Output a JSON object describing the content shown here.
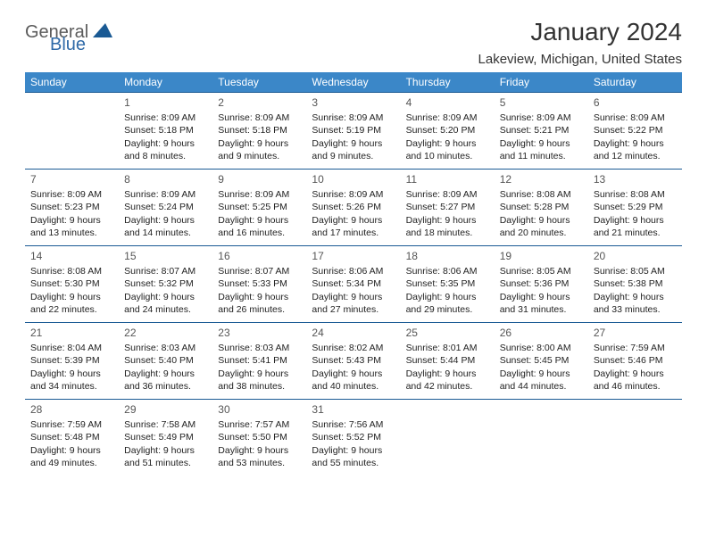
{
  "brand": {
    "name_gray": "General",
    "name_blue": "Blue",
    "logo_fill": "#1a5a94"
  },
  "title": "January 2024",
  "location": "Lakeview, Michigan, United States",
  "header_bg": "#3b87c8",
  "header_fg": "#ffffff",
  "rule_color": "#1a5a94",
  "columns": [
    "Sunday",
    "Monday",
    "Tuesday",
    "Wednesday",
    "Thursday",
    "Friday",
    "Saturday"
  ],
  "weeks": [
    [
      null,
      {
        "d": "1",
        "sr": "8:09 AM",
        "ss": "5:18 PM",
        "dl1": "Daylight: 9 hours",
        "dl2": "and 8 minutes."
      },
      {
        "d": "2",
        "sr": "8:09 AM",
        "ss": "5:18 PM",
        "dl1": "Daylight: 9 hours",
        "dl2": "and 9 minutes."
      },
      {
        "d": "3",
        "sr": "8:09 AM",
        "ss": "5:19 PM",
        "dl1": "Daylight: 9 hours",
        "dl2": "and 9 minutes."
      },
      {
        "d": "4",
        "sr": "8:09 AM",
        "ss": "5:20 PM",
        "dl1": "Daylight: 9 hours",
        "dl2": "and 10 minutes."
      },
      {
        "d": "5",
        "sr": "8:09 AM",
        "ss": "5:21 PM",
        "dl1": "Daylight: 9 hours",
        "dl2": "and 11 minutes."
      },
      {
        "d": "6",
        "sr": "8:09 AM",
        "ss": "5:22 PM",
        "dl1": "Daylight: 9 hours",
        "dl2": "and 12 minutes."
      }
    ],
    [
      {
        "d": "7",
        "sr": "8:09 AM",
        "ss": "5:23 PM",
        "dl1": "Daylight: 9 hours",
        "dl2": "and 13 minutes."
      },
      {
        "d": "8",
        "sr": "8:09 AM",
        "ss": "5:24 PM",
        "dl1": "Daylight: 9 hours",
        "dl2": "and 14 minutes."
      },
      {
        "d": "9",
        "sr": "8:09 AM",
        "ss": "5:25 PM",
        "dl1": "Daylight: 9 hours",
        "dl2": "and 16 minutes."
      },
      {
        "d": "10",
        "sr": "8:09 AM",
        "ss": "5:26 PM",
        "dl1": "Daylight: 9 hours",
        "dl2": "and 17 minutes."
      },
      {
        "d": "11",
        "sr": "8:09 AM",
        "ss": "5:27 PM",
        "dl1": "Daylight: 9 hours",
        "dl2": "and 18 minutes."
      },
      {
        "d": "12",
        "sr": "8:08 AM",
        "ss": "5:28 PM",
        "dl1": "Daylight: 9 hours",
        "dl2": "and 20 minutes."
      },
      {
        "d": "13",
        "sr": "8:08 AM",
        "ss": "5:29 PM",
        "dl1": "Daylight: 9 hours",
        "dl2": "and 21 minutes."
      }
    ],
    [
      {
        "d": "14",
        "sr": "8:08 AM",
        "ss": "5:30 PM",
        "dl1": "Daylight: 9 hours",
        "dl2": "and 22 minutes."
      },
      {
        "d": "15",
        "sr": "8:07 AM",
        "ss": "5:32 PM",
        "dl1": "Daylight: 9 hours",
        "dl2": "and 24 minutes."
      },
      {
        "d": "16",
        "sr": "8:07 AM",
        "ss": "5:33 PM",
        "dl1": "Daylight: 9 hours",
        "dl2": "and 26 minutes."
      },
      {
        "d": "17",
        "sr": "8:06 AM",
        "ss": "5:34 PM",
        "dl1": "Daylight: 9 hours",
        "dl2": "and 27 minutes."
      },
      {
        "d": "18",
        "sr": "8:06 AM",
        "ss": "5:35 PM",
        "dl1": "Daylight: 9 hours",
        "dl2": "and 29 minutes."
      },
      {
        "d": "19",
        "sr": "8:05 AM",
        "ss": "5:36 PM",
        "dl1": "Daylight: 9 hours",
        "dl2": "and 31 minutes."
      },
      {
        "d": "20",
        "sr": "8:05 AM",
        "ss": "5:38 PM",
        "dl1": "Daylight: 9 hours",
        "dl2": "and 33 minutes."
      }
    ],
    [
      {
        "d": "21",
        "sr": "8:04 AM",
        "ss": "5:39 PM",
        "dl1": "Daylight: 9 hours",
        "dl2": "and 34 minutes."
      },
      {
        "d": "22",
        "sr": "8:03 AM",
        "ss": "5:40 PM",
        "dl1": "Daylight: 9 hours",
        "dl2": "and 36 minutes."
      },
      {
        "d": "23",
        "sr": "8:03 AM",
        "ss": "5:41 PM",
        "dl1": "Daylight: 9 hours",
        "dl2": "and 38 minutes."
      },
      {
        "d": "24",
        "sr": "8:02 AM",
        "ss": "5:43 PM",
        "dl1": "Daylight: 9 hours",
        "dl2": "and 40 minutes."
      },
      {
        "d": "25",
        "sr": "8:01 AM",
        "ss": "5:44 PM",
        "dl1": "Daylight: 9 hours",
        "dl2": "and 42 minutes."
      },
      {
        "d": "26",
        "sr": "8:00 AM",
        "ss": "5:45 PM",
        "dl1": "Daylight: 9 hours",
        "dl2": "and 44 minutes."
      },
      {
        "d": "27",
        "sr": "7:59 AM",
        "ss": "5:46 PM",
        "dl1": "Daylight: 9 hours",
        "dl2": "and 46 minutes."
      }
    ],
    [
      {
        "d": "28",
        "sr": "7:59 AM",
        "ss": "5:48 PM",
        "dl1": "Daylight: 9 hours",
        "dl2": "and 49 minutes."
      },
      {
        "d": "29",
        "sr": "7:58 AM",
        "ss": "5:49 PM",
        "dl1": "Daylight: 9 hours",
        "dl2": "and 51 minutes."
      },
      {
        "d": "30",
        "sr": "7:57 AM",
        "ss": "5:50 PM",
        "dl1": "Daylight: 9 hours",
        "dl2": "and 53 minutes."
      },
      {
        "d": "31",
        "sr": "7:56 AM",
        "ss": "5:52 PM",
        "dl1": "Daylight: 9 hours",
        "dl2": "and 55 minutes."
      },
      null,
      null,
      null
    ]
  ],
  "labels": {
    "sunrise": "Sunrise:",
    "sunset": "Sunset:"
  }
}
